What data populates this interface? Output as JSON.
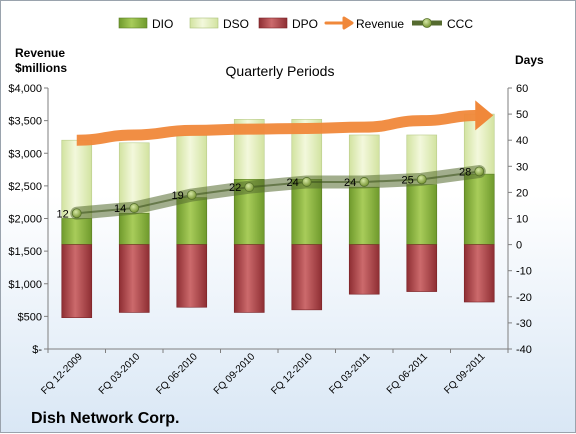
{
  "chart_data": {
    "type": "bar",
    "title": "Quarterly Periods",
    "company": "Dish Network Corp.",
    "left_axis_label": [
      "Revenue",
      "$millions"
    ],
    "right_axis_label": "Days",
    "categories": [
      "FQ 12-2009",
      "FQ 03-2010",
      "FQ 06-2010",
      "FQ 09-2010",
      "FQ 12-2010",
      "FQ 03-2011",
      "FQ 06-2011",
      "FQ 09-2011"
    ],
    "left_axis": {
      "min": 0,
      "max": 4000,
      "step": 500,
      "tick_labels": [
        "$-",
        "$500",
        "$1,000",
        "$1,500",
        "$2,000",
        "$2,500",
        "$3,000",
        "$3,500",
        "$4,000"
      ]
    },
    "right_axis": {
      "min": -40,
      "max": 60,
      "step": 10,
      "tick_labels": [
        "-40",
        "-30",
        "-20",
        "-10",
        "0",
        "10",
        "20",
        "30",
        "40",
        "50",
        "60"
      ]
    },
    "legend": [
      "DIO",
      "DSO",
      "DPO",
      "Revenue",
      "CCC"
    ],
    "legend_position": "top",
    "grid": false,
    "series": [
      {
        "name": "DIO",
        "axis": "days",
        "color": "#8db33f",
        "values": [
          10,
          12,
          18,
          25,
          25,
          22,
          23,
          27
        ]
      },
      {
        "name": "DSO",
        "axis": "days",
        "color": "#e3efbe",
        "values": [
          40,
          39,
          42,
          48,
          48,
          42,
          42,
          50
        ]
      },
      {
        "name": "DPO",
        "axis": "days",
        "color": "#b2474b",
        "values": [
          -28,
          -26,
          -24,
          -26,
          -25,
          -19,
          -18,
          -22
        ]
      },
      {
        "name": "Revenue",
        "axis": "revenue",
        "color": "#f0883a",
        "values": [
          3200,
          3280,
          3350,
          3370,
          3380,
          3400,
          3500,
          3580
        ]
      },
      {
        "name": "CCC",
        "axis": "days",
        "color": "#556b2f",
        "values": [
          12,
          14,
          19,
          22,
          24,
          24,
          25,
          28
        ]
      }
    ],
    "ccc_labels": [
      "12",
      "14",
      "19",
      "22",
      "24",
      "24",
      "25",
      "28"
    ]
  }
}
